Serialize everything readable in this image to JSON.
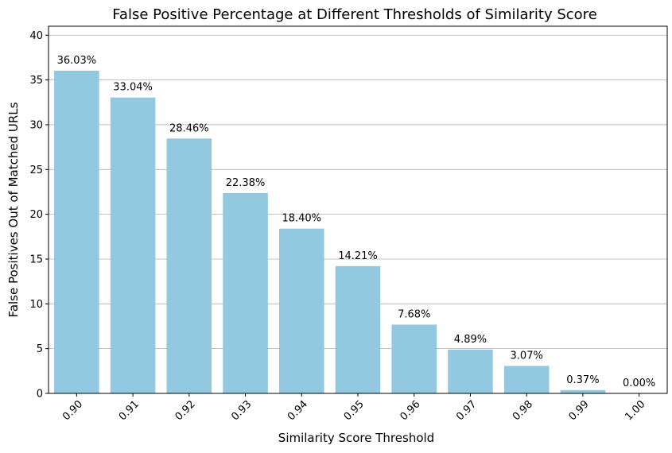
{
  "chart_data": {
    "type": "bar",
    "title": "False Positive Percentage at Different Thresholds of Similarity Score",
    "xlabel": "Similarity Score Threshold",
    "ylabel": "False Positives Out of Matched URLs",
    "categories": [
      "0.90",
      "0.91",
      "0.92",
      "0.93",
      "0.94",
      "0.95",
      "0.96",
      "0.97",
      "0.98",
      "0.99",
      "1.00"
    ],
    "values": [
      36.03,
      33.04,
      28.46,
      22.38,
      18.4,
      14.21,
      7.68,
      4.89,
      3.07,
      0.37,
      0.0
    ],
    "data_labels": [
      "36.03%",
      "33.04%",
      "28.46%",
      "22.38%",
      "18.40%",
      "14.21%",
      "7.68%",
      "4.89%",
      "3.07%",
      "0.37%",
      "0.00%"
    ],
    "ylim": [
      0,
      41
    ],
    "yticks": [
      0,
      5,
      10,
      15,
      20,
      25,
      30,
      35,
      40
    ],
    "grid": "y",
    "bar_color": "#92c9e0"
  }
}
